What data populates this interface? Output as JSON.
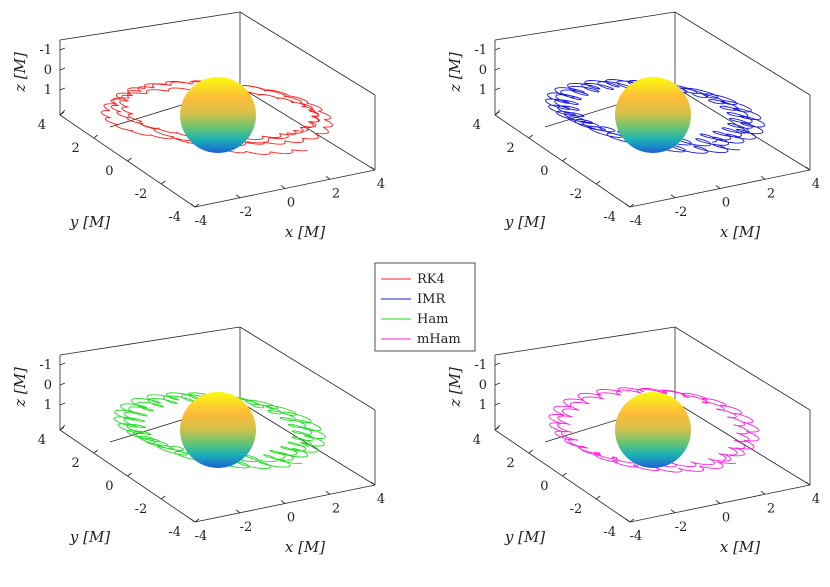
{
  "chart_data": [
    {
      "type": "line",
      "projection": "3d",
      "series_name": "RK4",
      "color": "#ff2020",
      "xlabel": "x [M]",
      "ylabel": "y [M]",
      "zlabel": "z [M]",
      "xlim": [
        -4,
        4
      ],
      "ylim": [
        -4,
        4
      ],
      "zlim": [
        -1.5,
        1.5
      ],
      "x_ticks": [
        "-4",
        "-2",
        "0",
        "2",
        "4"
      ],
      "y_ticks": [
        "-4",
        "-2",
        "0",
        "2",
        "4"
      ],
      "z_ticks": [
        "-1",
        "0",
        "1"
      ],
      "orbit": {
        "radius_min": 3.6,
        "radius_max": 4.3,
        "tilt": 1.2,
        "loops": 3,
        "precession_deg": 40,
        "wiggle": 0.15
      },
      "central_body": {
        "type": "sphere",
        "radius": 1.0,
        "colormap": "parula"
      },
      "grid": false
    },
    {
      "type": "line",
      "projection": "3d",
      "series_name": "IMR",
      "color": "#1a1adf",
      "xlabel": "x [M]",
      "ylabel": "y [M]",
      "zlabel": "z [M]",
      "xlim": [
        -4,
        4
      ],
      "ylim": [
        -4,
        4
      ],
      "zlim": [
        -1.5,
        1.5
      ],
      "x_ticks": [
        "-4",
        "-2",
        "0",
        "2",
        "4"
      ],
      "y_ticks": [
        "-4",
        "-2",
        "0",
        "2",
        "4"
      ],
      "z_ticks": [
        "-1",
        "0",
        "1"
      ],
      "orbit": {
        "radius_min": 3.3,
        "radius_max": 3.9,
        "tilt": 1.1,
        "loops": 2,
        "precession_deg": 15,
        "wiggle": 0.45
      },
      "central_body": {
        "type": "sphere",
        "radius": 1.0,
        "colormap": "parula"
      },
      "grid": false
    },
    {
      "type": "line",
      "projection": "3d",
      "series_name": "Ham",
      "color": "#22dd22",
      "xlabel": "x [M]",
      "ylabel": "y [M]",
      "zlabel": "z [M]",
      "xlim": [
        -4,
        4
      ],
      "ylim": [
        -4,
        4
      ],
      "zlim": [
        -1.5,
        1.5
      ],
      "x_ticks": [
        "-4",
        "-2",
        "0",
        "2",
        "4"
      ],
      "y_ticks": [
        "-4",
        "-2",
        "0",
        "2",
        "4"
      ],
      "z_ticks": [
        "-1",
        "0",
        "1"
      ],
      "orbit": {
        "radius_min": 3.2,
        "radius_max": 3.8,
        "tilt": 0.9,
        "loops": 2,
        "precession_deg": 10,
        "wiggle": 0.4
      },
      "central_body": {
        "type": "sphere",
        "radius": 1.0,
        "colormap": "parula"
      },
      "grid": false
    },
    {
      "type": "line",
      "projection": "3d",
      "series_name": "mHam",
      "color": "#ff22dd",
      "xlabel": "x [M]",
      "ylabel": "y [M]",
      "zlabel": "z [M]",
      "xlim": [
        -4,
        4
      ],
      "ylim": [
        -4,
        4
      ],
      "zlim": [
        -1.5,
        1.5
      ],
      "x_ticks": [
        "-4",
        "-2",
        "0",
        "2",
        "4"
      ],
      "y_ticks": [
        "-4",
        "-2",
        "0",
        "2",
        "4"
      ],
      "z_ticks": [
        "-1",
        "0",
        "1"
      ],
      "orbit": {
        "radius_min": 3.4,
        "radius_max": 3.9,
        "tilt": 0.6,
        "loops": 2,
        "precession_deg": 4,
        "wiggle": 0.25
      },
      "central_body": {
        "type": "sphere",
        "radius": 1.0,
        "colormap": "parula"
      },
      "grid": false
    }
  ],
  "legend": {
    "placement": "center",
    "entries": [
      {
        "label": "RK4",
        "color": "#ff2020"
      },
      {
        "label": "IMR",
        "color": "#1a1adf"
      },
      {
        "label": "Ham",
        "color": "#22dd22"
      },
      {
        "label": "mHam",
        "color": "#ff22dd"
      }
    ]
  }
}
